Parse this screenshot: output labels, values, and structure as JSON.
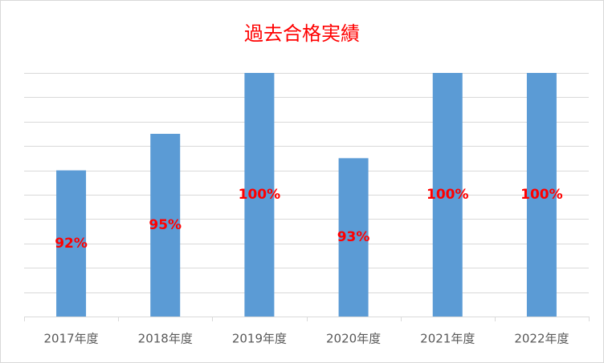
{
  "chart_data": {
    "type": "bar",
    "title": "過去合格実績",
    "categories": [
      "2017年度",
      "2018年度",
      "2019年度",
      "2020年度",
      "2021年度",
      "2022年度"
    ],
    "values": [
      92,
      95,
      100,
      93,
      100,
      100
    ],
    "value_labels": [
      "92%",
      "95%",
      "100%",
      "93%",
      "100%",
      "100%"
    ],
    "color": "#5b9bd5",
    "label_color": "#ff0000",
    "title_color": "#ff0000",
    "ylim": [
      80,
      100
    ],
    "yticks": [
      80,
      82,
      84,
      86,
      88,
      90,
      92,
      94,
      96,
      98,
      100
    ],
    "grid": true,
    "show_y_tick_labels": false
  }
}
